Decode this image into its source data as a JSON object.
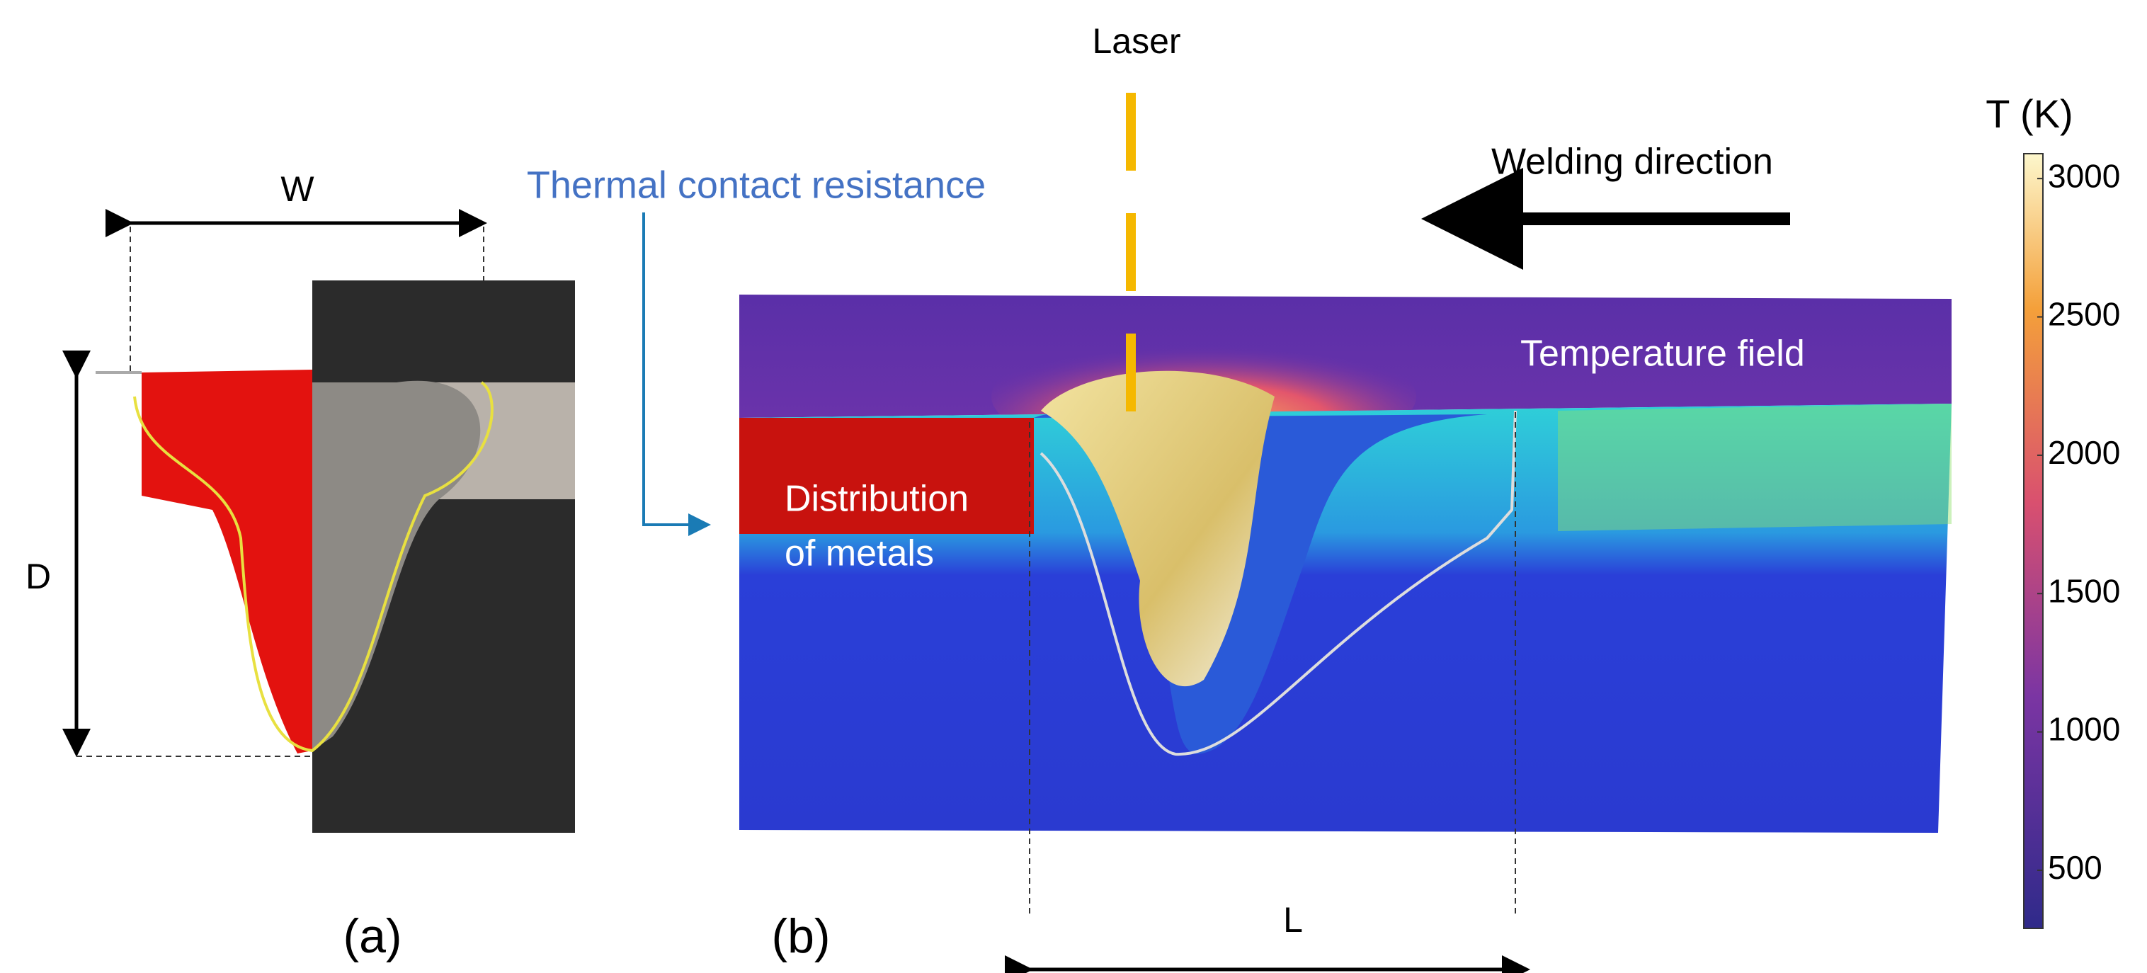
{
  "panel_a": {
    "width_label": "W",
    "depth_label": "D",
    "caption": "(a)"
  },
  "panel_b": {
    "laser_label": "Laser",
    "direction_label": "Welding direction",
    "contact_label": "Thermal contact resistance",
    "metals_label_1": "Distribution",
    "metals_label_2": "of metals",
    "field_label": "Temperature field",
    "length_label": "L",
    "caption": "(b)"
  },
  "colorbar": {
    "title": "T (K)",
    "lim": [
      290,
      3090
    ],
    "ticks": [
      500,
      1000,
      1500,
      2000,
      2500,
      3000
    ]
  }
}
